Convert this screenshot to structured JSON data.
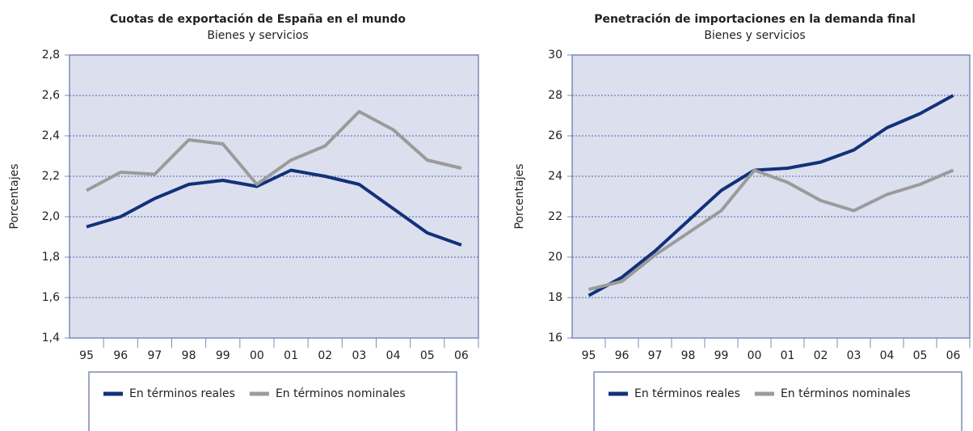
{
  "chart_data": [
    {
      "type": "line",
      "title": "Cuotas de exportación de España en el mundo",
      "subtitle": "Bienes y servicios",
      "y_label": "Porcentajes",
      "categories": [
        "95",
        "96",
        "97",
        "98",
        "99",
        "00",
        "01",
        "02",
        "03",
        "04",
        "05",
        "06"
      ],
      "series": [
        {
          "name": "En términos reales",
          "color": "#12317a",
          "values": [
            1.95,
            2.0,
            2.09,
            2.16,
            2.18,
            2.15,
            2.23,
            2.2,
            2.16,
            2.04,
            1.92,
            1.86
          ]
        },
        {
          "name": "En términos nominales",
          "color": "#9b9b9b",
          "values": [
            2.13,
            2.22,
            2.21,
            2.38,
            2.36,
            2.16,
            2.28,
            2.35,
            2.52,
            2.43,
            2.28,
            2.24
          ]
        }
      ],
      "ylim": [
        1.4,
        2.8
      ],
      "yticks": [
        {
          "value": 1.4,
          "label": "1,4"
        },
        {
          "value": 1.6,
          "label": "1,6"
        },
        {
          "value": 1.8,
          "label": "1,8"
        },
        {
          "value": 2.0,
          "label": "2,0"
        },
        {
          "value": 2.2,
          "label": "2,2"
        },
        {
          "value": 2.4,
          "label": "2,4"
        },
        {
          "value": 2.6,
          "label": "2,6"
        },
        {
          "value": 2.8,
          "label": "2,8"
        }
      ],
      "grid": true,
      "legend": "bottom"
    },
    {
      "type": "line",
      "title": "Penetración de importaciones en la demanda final",
      "subtitle": "Bienes y servicios",
      "y_label": "Porcentajes",
      "categories": [
        "95",
        "96",
        "97",
        "98",
        "99",
        "00",
        "01",
        "02",
        "03",
        "04",
        "05",
        "06"
      ],
      "series": [
        {
          "name": "En términos reales",
          "color": "#12317a",
          "values": [
            18.1,
            19.0,
            20.3,
            21.8,
            23.3,
            24.3,
            24.4,
            24.7,
            25.3,
            26.4,
            27.1,
            28.0
          ]
        },
        {
          "name": "En términos nominales",
          "color": "#9b9b9b",
          "values": [
            18.4,
            18.8,
            20.1,
            21.2,
            22.3,
            24.3,
            23.7,
            22.8,
            22.3,
            23.1,
            23.6,
            24.3
          ]
        }
      ],
      "ylim": [
        16,
        30
      ],
      "yticks": [
        16,
        18,
        20,
        22,
        24,
        26,
        28,
        30
      ],
      "grid": true,
      "legend": "bottom"
    }
  ]
}
